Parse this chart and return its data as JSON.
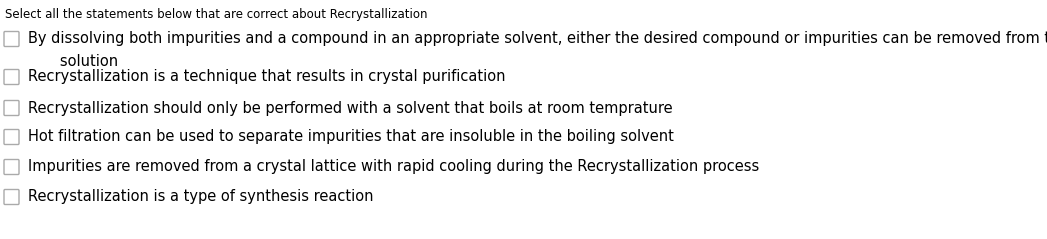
{
  "title": "Select all the statements below that are correct about Recrystallization",
  "title_fontsize": 8.5,
  "title_color": "#000000",
  "background_color": "#ffffff",
  "checkbox_color": "#aaaaaa",
  "text_color": "#000000",
  "text_fontsize": 10.5,
  "indent_text": "   solution",
  "options": [
    {
      "line1": "By dissolving both impurities and a compound in an appropriate solvent, either the desired compound or impurities can be removed from the",
      "line2": "   solution"
    },
    {
      "line1": "Recrystallization is a technique that results in crystal purification",
      "line2": null
    },
    {
      "line1": "Recrystallization should only be performed with a solvent that boils at room temprature",
      "line2": null
    },
    {
      "line1": "Hot filtration can be used to separate impurities that are insoluble in the boiling solvent",
      "line2": null
    },
    {
      "line1": "Impurities are removed from a crystal lattice with rapid cooling during the Recrystallization process",
      "line2": null
    },
    {
      "line1": "Recrystallization is a type of synthesis reaction",
      "line2": null
    }
  ],
  "figwidth": 10.47,
  "figheight": 2.39,
  "dpi": 100
}
